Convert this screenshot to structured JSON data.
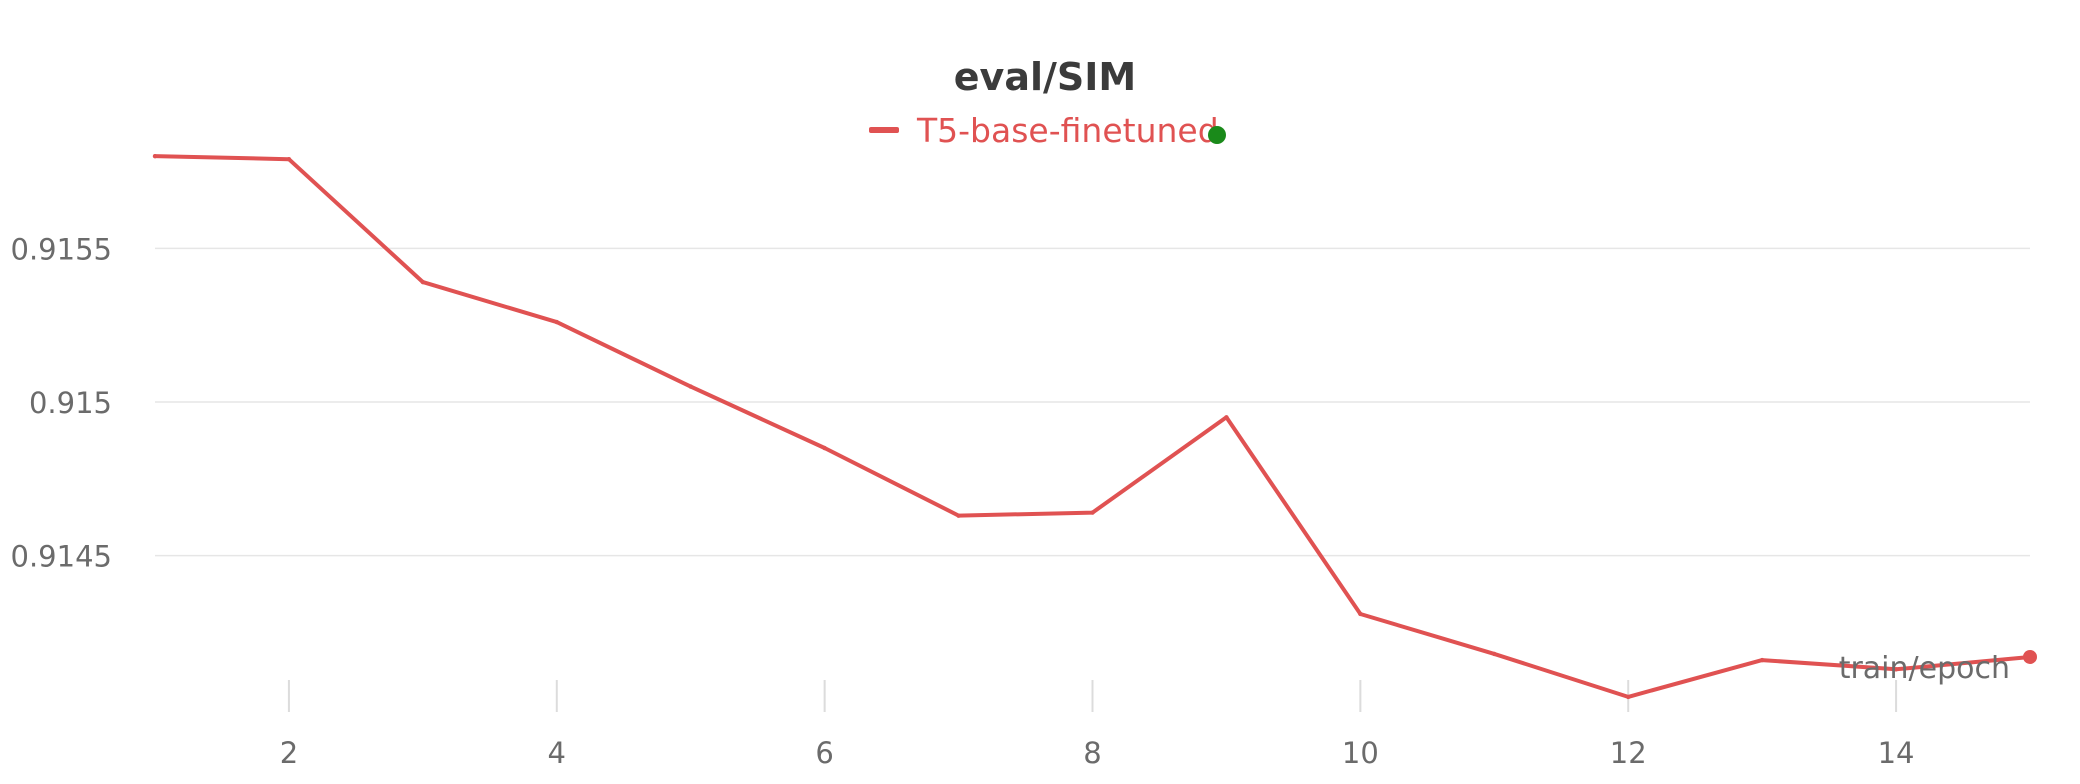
{
  "chart_data": {
    "type": "line",
    "title": "eval/SIM",
    "xlabel": "train/epoch",
    "ylabel": "",
    "x": [
      1,
      2,
      3,
      4,
      5,
      6,
      7,
      8,
      9,
      10,
      11,
      12,
      13,
      14,
      15
    ],
    "series": [
      {
        "name": "T5-base-finetuned",
        "color": "#e05252",
        "values": [
          0.9158,
          0.91579,
          0.91539,
          0.91526,
          0.91505,
          0.91485,
          0.91463,
          0.91464,
          0.91495,
          0.91431,
          0.91418,
          0.91404,
          0.91416,
          0.91413,
          0.91417
        ]
      }
    ],
    "xlim": [
      1,
      15
    ],
    "ylim": [
      0.91403,
      0.91582
    ],
    "xticks": [
      2,
      4,
      6,
      8,
      10,
      12,
      14
    ],
    "yticks": [
      0.9145,
      0.915,
      0.9155
    ],
    "ytick_labels": [
      "0.9145",
      "0.915",
      "0.9155"
    ],
    "grid": "horizontal",
    "legend_position": "top-center",
    "legend_status_color": "#1a8a1a"
  }
}
